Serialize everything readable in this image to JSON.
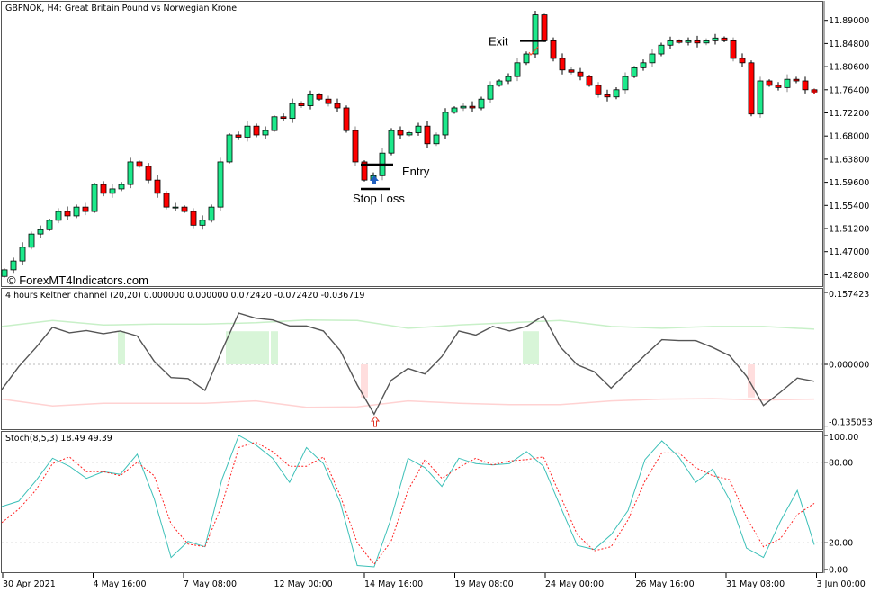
{
  "chart_data": [
    {
      "type": "candlestick",
      "title": "GBPNOK, H4:  Great Britain Pound vs Norwegian Krone",
      "first_open": 11.425,
      "closes": [
        11.437,
        11.453,
        11.478,
        11.502,
        11.51,
        11.527,
        11.543,
        11.535,
        11.551,
        11.543,
        11.592,
        11.576,
        11.584,
        11.592,
        11.633,
        11.625,
        11.6,
        11.576,
        11.551,
        11.551,
        11.543,
        11.518,
        11.527,
        11.551,
        11.633,
        11.682,
        11.678,
        11.698,
        11.682,
        11.69,
        11.715,
        11.712,
        11.739,
        11.735,
        11.755,
        11.747,
        11.739,
        11.731,
        11.69,
        11.633,
        11.6,
        11.608,
        11.649,
        11.69,
        11.682,
        11.686,
        11.698,
        11.666,
        11.682,
        11.723,
        11.731,
        11.734,
        11.731,
        11.747,
        11.772,
        11.78,
        11.788,
        11.813,
        11.829,
        11.9,
        11.853,
        11.821,
        11.8,
        11.796,
        11.788,
        11.772,
        11.755,
        11.751,
        11.764,
        11.788,
        11.804,
        11.813,
        11.829,
        11.845,
        11.853,
        11.85,
        11.853,
        11.849,
        11.853,
        11.858,
        11.853,
        11.821,
        11.813,
        11.72,
        11.78,
        11.772,
        11.768,
        11.783,
        11.78,
        11.764,
        11.76
      ],
      "y_ticks": [
        11.89,
        11.848,
        11.806,
        11.764,
        11.722,
        11.68,
        11.638,
        11.596,
        11.554,
        11.512,
        11.47,
        11.428
      ],
      "y_tick_labels": [
        "11.89000",
        "11.84800",
        "11.80600",
        "11.76400",
        "11.72200",
        "11.68000",
        "11.63800",
        "11.59600",
        "11.55400",
        "11.51200",
        "11.47000",
        "11.42800"
      ],
      "bull_color": "#1de98b",
      "bear_color": "#ff0000",
      "annotations": {
        "entry": {
          "label": "Entry",
          "price": 11.628
        },
        "stop_loss": {
          "label": "Stop Loss",
          "price": 11.584
        },
        "exit": {
          "label": "Exit",
          "price": 11.853
        },
        "buy_arrow": {
          "icon": "up-arrow-icon",
          "color": "#1f5fbf"
        }
      },
      "watermark": "© ForexMT4Indicators.com"
    },
    {
      "type": "line",
      "title": "4 hours Keltner channel (20,20) 0.000000 0.000000 0.072420 -0.072420 -0.036719",
      "y_tick_labels": [
        "0.157423",
        "0.000000",
        "-0.135053"
      ],
      "y_ticks": [
        0.157423,
        0,
        -0.135053
      ],
      "ylim": [
        -0.135053,
        0.157423
      ],
      "main": [
        -0.055,
        -0.005,
        0.036,
        0.081,
        0.069,
        0.074,
        0.067,
        0.073,
        0.062,
        0.007,
        -0.029,
        -0.031,
        -0.057,
        0.03,
        0.112,
        0.101,
        0.097,
        0.084,
        0.084,
        0.073,
        0.03,
        -0.045,
        -0.109,
        -0.035,
        -0.009,
        -0.021,
        0.017,
        0.073,
        0.064,
        0.083,
        0.073,
        0.083,
        0.106,
        0.038,
        -0.001,
        -0.016,
        -0.052,
        -0.016,
        0.02,
        0.054,
        0.052,
        0.052,
        0.037,
        0.019,
        -0.026,
        -0.09,
        -0.061,
        -0.03,
        -0.037
      ],
      "upper": [
        0.083,
        0.096,
        0.086,
        0.088,
        0.088,
        0.091,
        0.097,
        0.096,
        0.079,
        0.086,
        0.091,
        0.096,
        0.083,
        0.079,
        0.083,
        0.083,
        0.077
      ],
      "lower": [
        -0.076,
        -0.091,
        -0.085,
        -0.085,
        -0.085,
        -0.08,
        -0.094,
        -0.093,
        -0.08,
        -0.085,
        -0.088,
        -0.088,
        -0.08,
        -0.076,
        -0.075,
        -0.078,
        -0.076
      ],
      "histogram": [
        {
          "signal": "buy",
          "bars": [
            13,
            13
          ],
          "value": 0.07242
        },
        {
          "signal": "buy",
          "bars": [
            25,
            29
          ],
          "value": 0.07242
        },
        {
          "signal": "buy",
          "bars": [
            30,
            30
          ],
          "value": 0.07242
        },
        {
          "signal": "sell",
          "bars": [
            40,
            40
          ],
          "value": -0.07242
        },
        {
          "signal": "buy",
          "bars": [
            58,
            59
          ],
          "value": 0.07242
        },
        {
          "signal": "sell",
          "bars": [
            83,
            83
          ],
          "value": -0.07242
        }
      ],
      "signal_arrow_bar": 41,
      "colors": {
        "main": "#555555",
        "upper": "#c8f0c8",
        "lower": "#ffd2d2",
        "buy": "#d8f5d8",
        "sell": "#ffdede",
        "arrow": "#e03020"
      }
    },
    {
      "type": "line",
      "title": "Stoch(8,5,3) 18.49 49.39",
      "ylim": [
        0,
        100
      ],
      "y_ticks": [
        100,
        80,
        20,
        0
      ],
      "y_tick_labels": [
        "100.00",
        "80.00",
        "20.00",
        "0.00"
      ],
      "levels": [
        80,
        20
      ],
      "series": [
        {
          "values": [
            47,
            51,
            66,
            83,
            77,
            68,
            73,
            71,
            86,
            53,
            9,
            21,
            17,
            67,
            100,
            93,
            83,
            65,
            91,
            79,
            50,
            3,
            2,
            38,
            83,
            76,
            62,
            83,
            79,
            78,
            79,
            88,
            77,
            47,
            18,
            15,
            26,
            44,
            82,
            96,
            84,
            65,
            75,
            52,
            16,
            9,
            36,
            59,
            18.49
          ],
          "color": "#3cc0b8"
        },
        {
          "values": [
            35,
            45,
            59,
            79,
            84,
            73,
            73,
            70,
            80,
            70,
            34,
            19,
            17,
            48,
            91,
            95,
            88,
            77,
            77,
            84,
            55,
            20,
            4,
            21,
            59,
            82,
            68,
            76,
            83,
            78,
            81,
            82,
            84,
            55,
            26,
            14,
            17,
            37,
            66,
            87,
            87,
            76,
            70,
            67,
            39,
            17,
            23,
            41,
            49.39
          ],
          "color": "#ff2020",
          "dashed": true
        }
      ]
    }
  ],
  "x_axis": {
    "labels": [
      "30 Apr 2021",
      "4 May 16:00",
      "7 May 08:00",
      "12 May 00:00",
      "14 May 16:00",
      "19 May 08:00",
      "24 May 00:00",
      "26 May 16:00",
      "31 May 08:00",
      "3 Jun 00:00"
    ]
  }
}
